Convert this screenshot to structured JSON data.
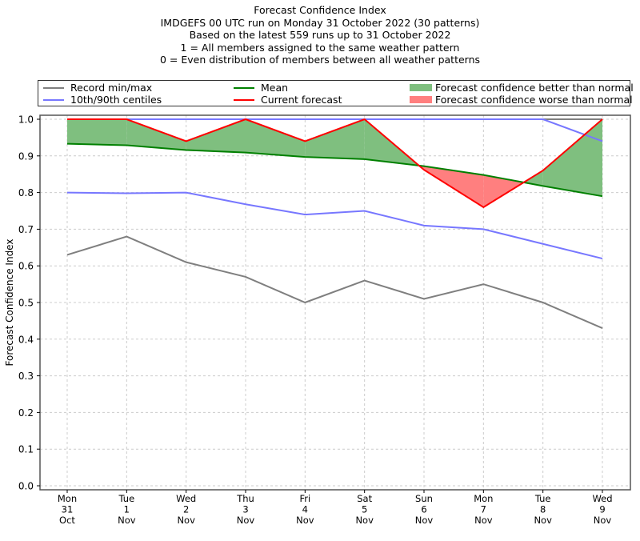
{
  "chart_data": {
    "type": "line",
    "title_lines": [
      "Forecast Confidence Index",
      "IMDGEFS 00 UTC run on Monday 31 October 2022 (30 patterns)",
      "Based on the latest 559 runs up to 31 October 2022",
      "1 = All members assigned to the same weather pattern",
      "0 = Even distribution of members between all weather patterns"
    ],
    "ylabel": "Forecast Confidence Index",
    "xlabel": "",
    "ylim": [
      0.0,
      1.0
    ],
    "yticks": [
      "0.0",
      "0.1",
      "0.2",
      "0.3",
      "0.4",
      "0.5",
      "0.6",
      "0.7",
      "0.8",
      "0.9",
      "1.0"
    ],
    "grid": true,
    "legend_position": "top",
    "categories": [
      [
        "Mon",
        "31",
        "Oct"
      ],
      [
        "Tue",
        "1",
        "Nov"
      ],
      [
        "Wed",
        "2",
        "Nov"
      ],
      [
        "Thu",
        "3",
        "Nov"
      ],
      [
        "Fri",
        "4",
        "Nov"
      ],
      [
        "Sat",
        "5",
        "Nov"
      ],
      [
        "Sun",
        "6",
        "Nov"
      ],
      [
        "Mon",
        "7",
        "Nov"
      ],
      [
        "Tue",
        "8",
        "Nov"
      ],
      [
        "Wed",
        "9",
        "Nov"
      ]
    ],
    "series": [
      {
        "name": "Record min/max",
        "part": "max",
        "color": "#7f7f7f",
        "values": [
          1.0,
          1.0,
          1.0,
          1.0,
          1.0,
          1.0,
          1.0,
          1.0,
          1.0,
          1.0
        ]
      },
      {
        "name": "Record min/max",
        "part": "min",
        "color": "#7f7f7f",
        "values": [
          0.63,
          0.68,
          0.61,
          0.57,
          0.5,
          0.56,
          0.51,
          0.55,
          0.5,
          0.43
        ]
      },
      {
        "name": "10th/90th centiles",
        "part": "90th",
        "color": "#7777ff",
        "values": [
          1.0,
          1.0,
          1.0,
          1.0,
          1.0,
          1.0,
          1.0,
          1.0,
          1.0,
          0.94
        ]
      },
      {
        "name": "10th/90th centiles",
        "part": "10th",
        "color": "#7777ff",
        "values": [
          0.8,
          0.798,
          0.8,
          0.768,
          0.74,
          0.75,
          0.71,
          0.7,
          0.66,
          0.62
        ]
      },
      {
        "name": "Mean",
        "color": "#008000",
        "values": [
          0.933,
          0.929,
          0.916,
          0.909,
          0.897,
          0.891,
          0.872,
          0.848,
          0.818,
          0.79
        ]
      },
      {
        "name": "Current forecast",
        "color": "#ff0000",
        "values": [
          1.0,
          1.0,
          0.94,
          1.0,
          0.94,
          1.0,
          0.862,
          0.76,
          0.86,
          1.0
        ]
      }
    ],
    "fills": [
      {
        "name": "Forecast confidence better than normal",
        "color": "#7fbf7f",
        "between": [
          "Current forecast",
          "Mean"
        ],
        "where": "current > mean"
      },
      {
        "name": "Forecast confidence worse than normal",
        "color": "#ff7f7f",
        "between": [
          "Current forecast",
          "Mean"
        ],
        "where": "current < mean"
      }
    ]
  },
  "legend": {
    "items": [
      {
        "label": "Record min/max",
        "color": "#7f7f7f",
        "kind": "line"
      },
      {
        "label": "10th/90th centiles",
        "color": "#7777ff",
        "kind": "line"
      },
      {
        "label": "Mean",
        "color": "#008000",
        "kind": "line"
      },
      {
        "label": "Current forecast",
        "color": "#ff0000",
        "kind": "line"
      },
      {
        "label": "Forecast confidence better than normal",
        "color": "#7fbf7f",
        "kind": "patch"
      },
      {
        "label": "Forecast confidence worse than normal",
        "color": "#ff7f7f",
        "kind": "patch"
      }
    ]
  }
}
